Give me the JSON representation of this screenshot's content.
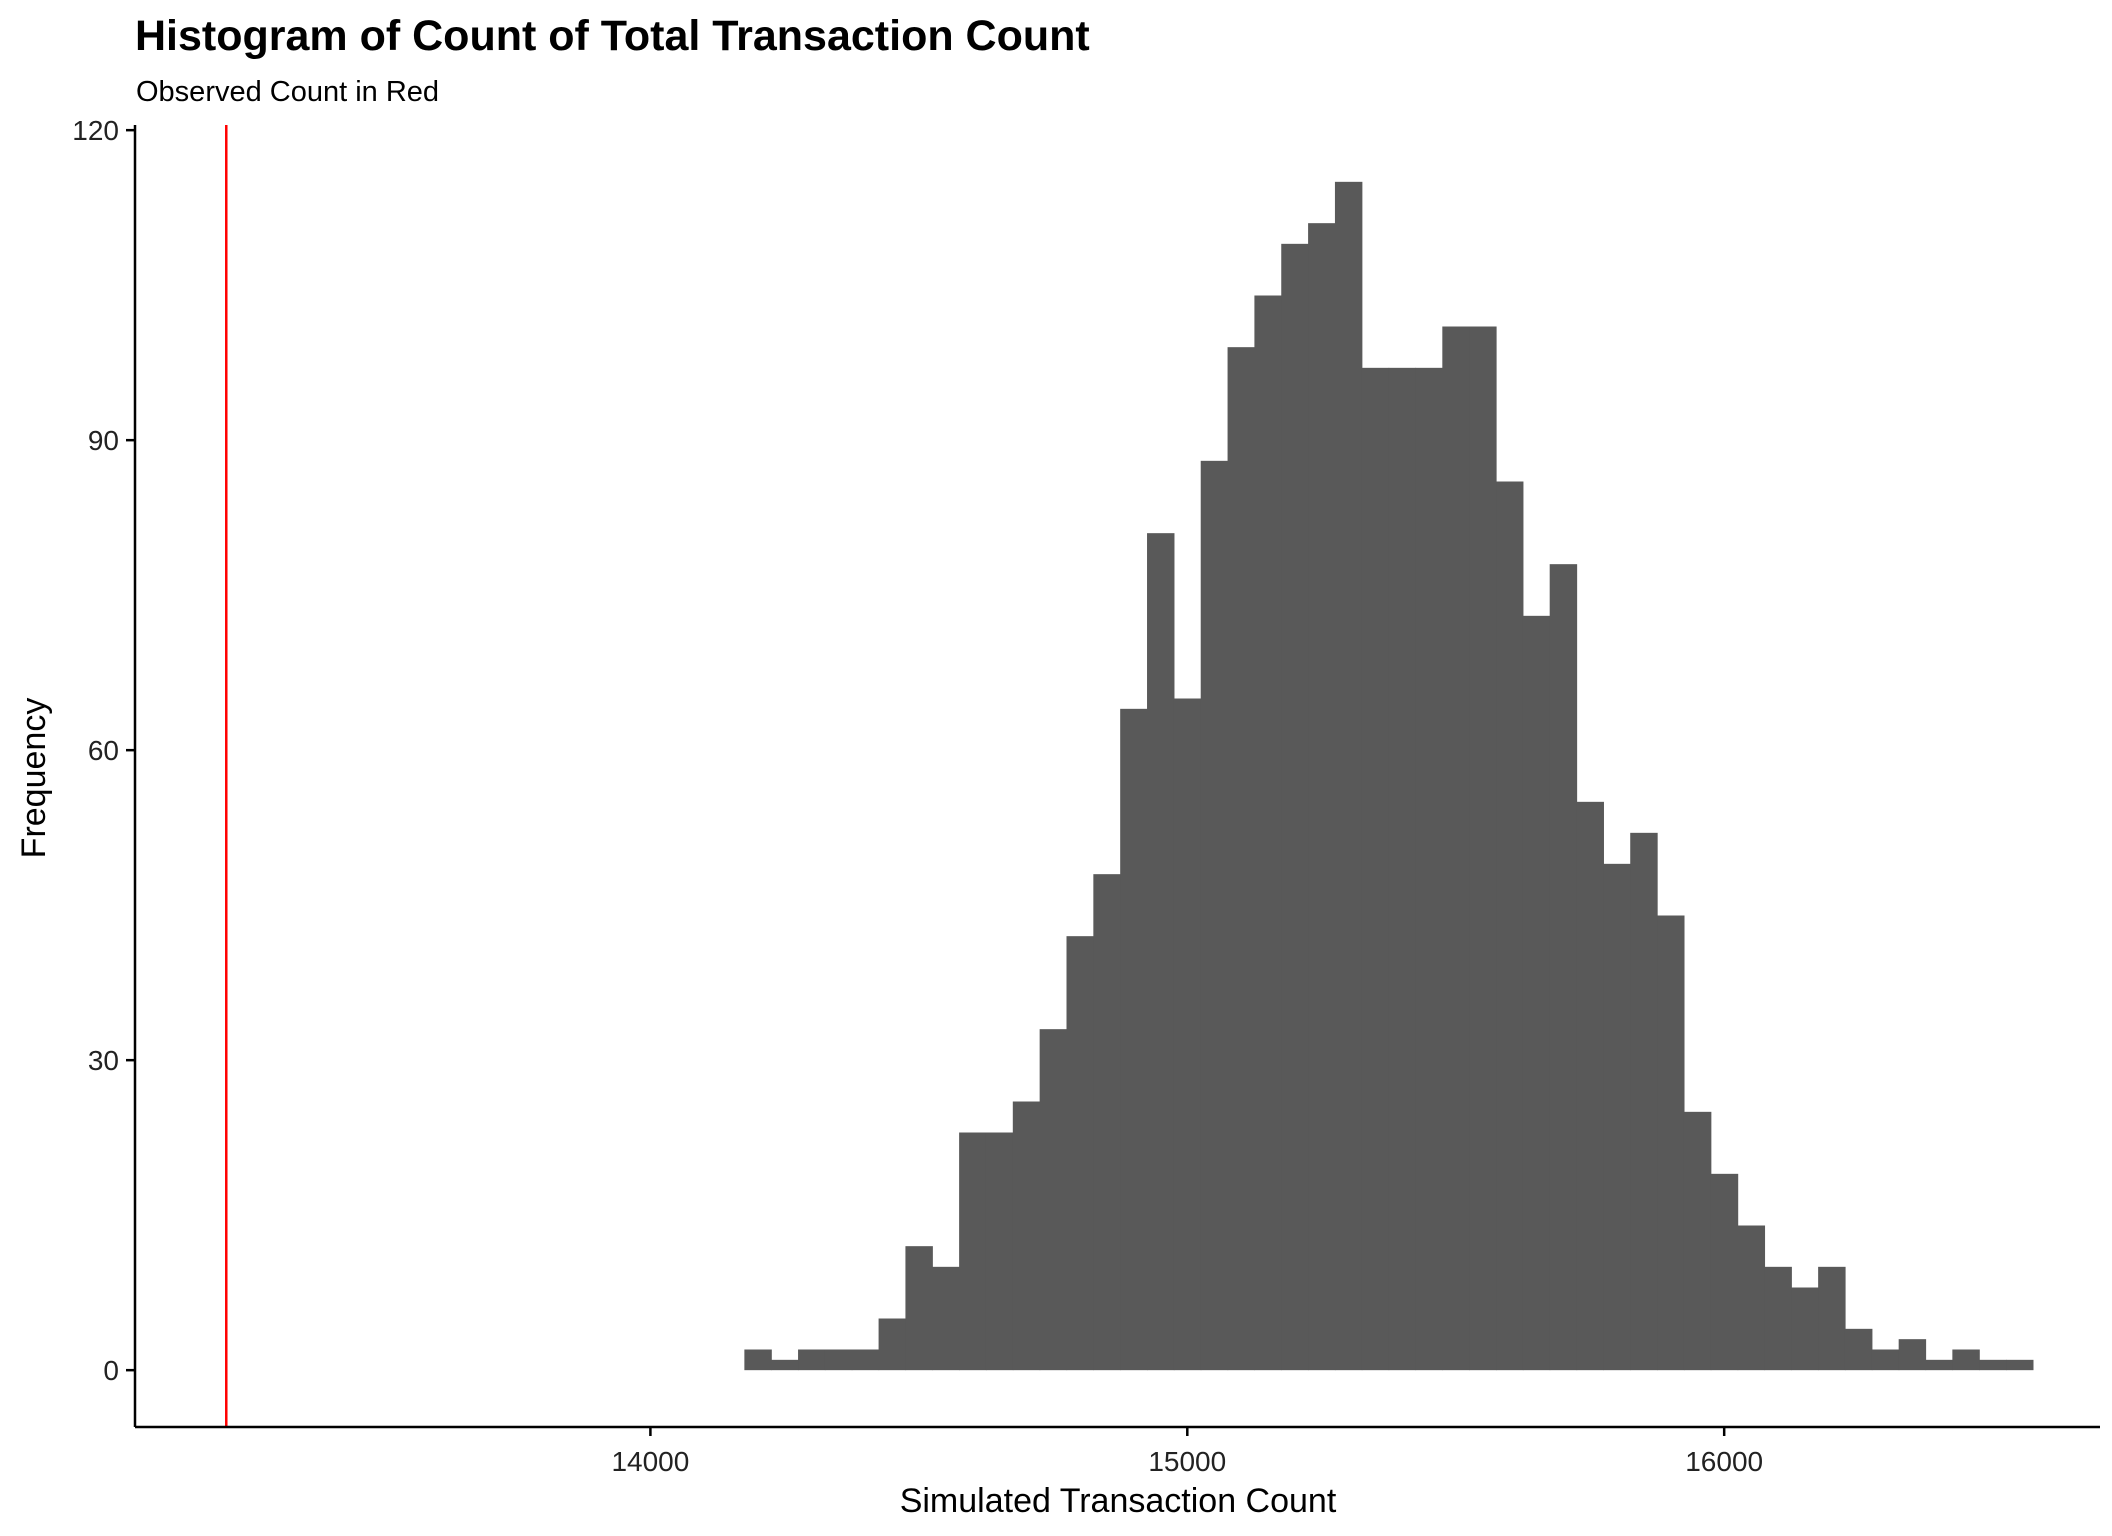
{
  "chart_data": {
    "type": "histogram",
    "title": "Histogram of Count of Total Transaction Count",
    "subtitle": "Observed Count in Red",
    "xlabel": "Simulated Transaction Count",
    "ylabel": "Frequency",
    "xlim": [
      13040,
      16700
    ],
    "ylim": [
      -5.5,
      120.5
    ],
    "x_ticks": [
      14000,
      15000,
      16000
    ],
    "y_ticks": [
      0,
      30,
      60,
      90,
      120
    ],
    "bin_width": 50,
    "bins_start": 14175,
    "counts": [
      2,
      1,
      2,
      2,
      2,
      5,
      12,
      10,
      23,
      23,
      26,
      33,
      42,
      48,
      64,
      81,
      65,
      88,
      99,
      104,
      109,
      111,
      115,
      97,
      97,
      97,
      101,
      101,
      86,
      73,
      78,
      55,
      49,
      52,
      44,
      25,
      19,
      14,
      10,
      8,
      10,
      4,
      2,
      3,
      1,
      2,
      1,
      1
    ],
    "bar_color": "#595959",
    "observed_value": 13210,
    "observed_color": "#ff0000",
    "grid": false
  }
}
